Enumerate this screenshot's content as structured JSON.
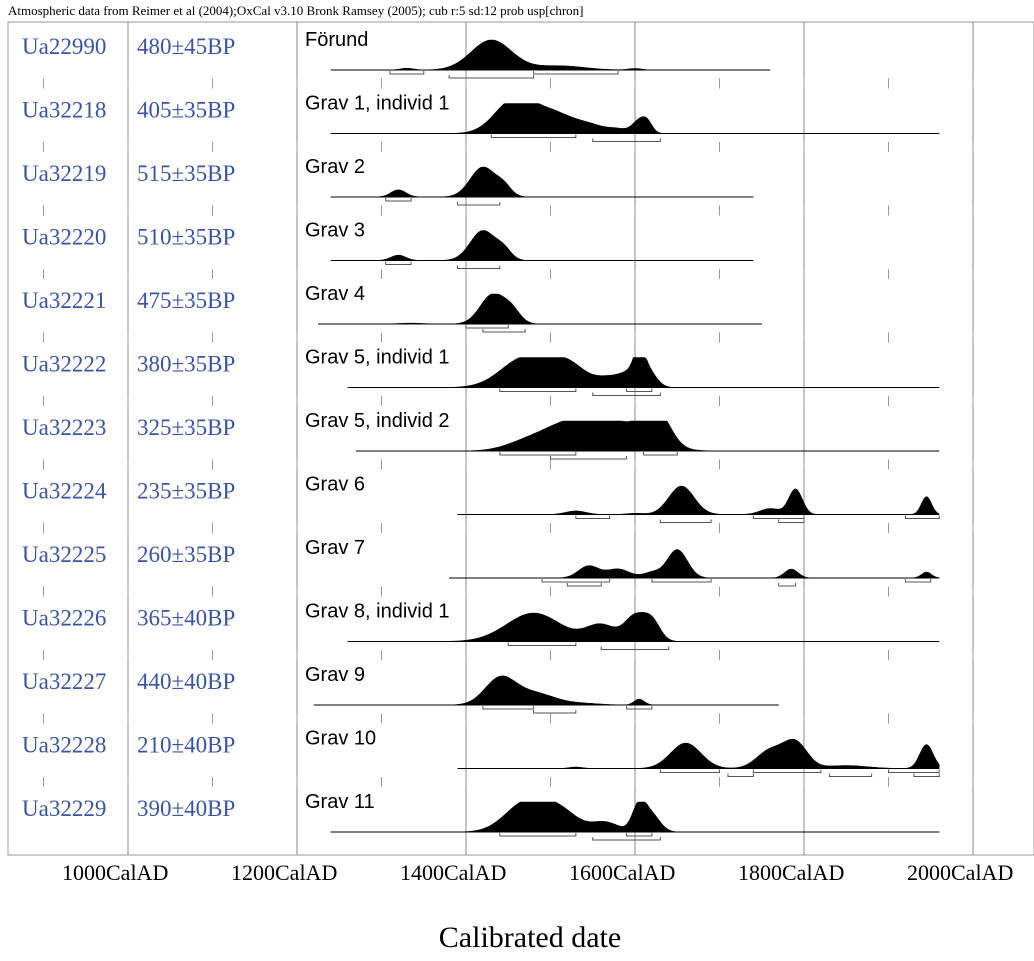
{
  "chart_data": {
    "type": "area",
    "title": "Atmospheric data from Reimer et al (2004);OxCal v3.10 Bronk Ramsey (2005); cub r:5 sd:12 prob usp[chron]",
    "xlabel": "Calibrated date",
    "xlim": [
      900,
      2000
    ],
    "x_ticks": [
      {
        "value": 1000,
        "label": "1000CalAD"
      },
      {
        "value": 1200,
        "label": "1200CalAD"
      },
      {
        "value": 1400,
        "label": "1400CalAD"
      },
      {
        "value": 1600,
        "label": "1600CalAD"
      },
      {
        "value": 1800,
        "label": "1800CalAD"
      },
      {
        "value": 2000,
        "label": "2000CalAD"
      }
    ],
    "samples": [
      {
        "lab_id": "Ua22990",
        "date": "480±45BP",
        "name": "Förund",
        "line": [
          1240,
          1760
        ],
        "peaks": [
          [
            1330,
            8,
            0.06
          ],
          [
            1430,
            24,
            1.0
          ],
          [
            1510,
            30,
            0.14
          ],
          [
            1600,
            8,
            0.05
          ]
        ],
        "ranges": [
          [
            1310,
            1350
          ],
          [
            1380,
            1480
          ],
          [
            1480,
            1580
          ]
        ]
      },
      {
        "lab_id": "Ua32218",
        "date": "405±35BP",
        "name": "Grav 1, individ 1",
        "line": [
          1240,
          1960
        ],
        "peaks": [
          [
            1455,
            22,
            0.96
          ],
          [
            1500,
            30,
            0.72
          ],
          [
            1550,
            15,
            0.15
          ],
          [
            1580,
            12,
            0.14
          ],
          [
            1605,
            8,
            0.42
          ],
          [
            1615,
            6,
            0.3
          ]
        ],
        "ranges": [
          [
            1430,
            1530
          ],
          [
            1550,
            1630
          ]
        ]
      },
      {
        "lab_id": "Ua32219",
        "date": "515±35BP",
        "name": "Grav 2",
        "line": [
          1240,
          1740
        ],
        "peaks": [
          [
            1320,
            9,
            0.24
          ],
          [
            1420,
            15,
            1.0
          ],
          [
            1445,
            9,
            0.3
          ]
        ],
        "ranges": [
          [
            1305,
            1335
          ],
          [
            1390,
            1440
          ]
        ]
      },
      {
        "lab_id": "Ua32220",
        "date": "510±35BP",
        "name": "Grav 3",
        "line": [
          1240,
          1740
        ],
        "peaks": [
          [
            1320,
            9,
            0.18
          ],
          [
            1420,
            15,
            1.0
          ],
          [
            1445,
            9,
            0.3
          ]
        ],
        "ranges": [
          [
            1305,
            1335
          ],
          [
            1390,
            1440
          ]
        ]
      },
      {
        "lab_id": "Ua32221",
        "date": "475±35BP",
        "name": "Grav 4",
        "line": [
          1225,
          1750
        ],
        "peaks": [
          [
            1335,
            14,
            0.03
          ],
          [
            1432,
            15,
            1.0
          ],
          [
            1455,
            10,
            0.35
          ]
        ],
        "ranges": [
          [
            1400,
            1450
          ],
          [
            1420,
            1470
          ]
        ]
      },
      {
        "lab_id": "Ua32222",
        "date": "380±35BP",
        "name": "Grav 5, individ 1",
        "line": [
          1260,
          1960
        ],
        "peaks": [
          [
            1470,
            28,
            1.0
          ],
          [
            1520,
            22,
            0.76
          ],
          [
            1570,
            15,
            0.3
          ],
          [
            1595,
            12,
            0.43
          ],
          [
            1605,
            6,
            0.8
          ],
          [
            1615,
            10,
            0.55
          ]
        ],
        "ranges": [
          [
            1440,
            1530
          ],
          [
            1550,
            1630
          ],
          [
            1590,
            1620
          ]
        ]
      },
      {
        "lab_id": "Ua32223",
        "date": "325±35BP",
        "name": "Grav 5, individ 2",
        "line": [
          1270,
          1960
        ],
        "peaks": [
          [
            1470,
            25,
            0.25
          ],
          [
            1520,
            30,
            0.8
          ],
          [
            1580,
            35,
            0.92
          ],
          [
            1615,
            10,
            0.7
          ],
          [
            1630,
            14,
            0.85
          ]
        ],
        "ranges": [
          [
            1440,
            1530
          ],
          [
            1500,
            1590
          ],
          [
            1610,
            1650
          ]
        ]
      },
      {
        "lab_id": "Ua32224",
        "date": "235±35BP",
        "name": "Grav 6",
        "line": [
          1390,
          1960
        ],
        "peaks": [
          [
            1530,
            12,
            0.12
          ],
          [
            1600,
            10,
            0.04
          ],
          [
            1655,
            15,
            0.95
          ],
          [
            1760,
            12,
            0.2
          ],
          [
            1790,
            8,
            0.85
          ],
          [
            1945,
            6,
            0.6
          ]
        ],
        "ranges": [
          [
            1530,
            1570
          ],
          [
            1630,
            1690
          ],
          [
            1740,
            1800
          ],
          [
            1770,
            1800
          ],
          [
            1920,
            1960
          ]
        ]
      },
      {
        "lab_id": "Ua32225",
        "date": "260±35BP",
        "name": "Grav 7",
        "line": [
          1380,
          1960
        ],
        "peaks": [
          [
            1545,
            12,
            0.4
          ],
          [
            1580,
            14,
            0.3
          ],
          [
            1620,
            10,
            0.18
          ],
          [
            1650,
            12,
            0.95
          ],
          [
            1785,
            8,
            0.3
          ],
          [
            1945,
            6,
            0.2
          ]
        ],
        "ranges": [
          [
            1490,
            1570
          ],
          [
            1520,
            1560
          ],
          [
            1620,
            1690
          ],
          [
            1770,
            1790
          ],
          [
            1920,
            1950
          ]
        ]
      },
      {
        "lab_id": "Ua32226",
        "date": "365±40BP",
        "name": "Grav 8, individ 1",
        "line": [
          1260,
          1960
        ],
        "peaks": [
          [
            1480,
            32,
            0.95
          ],
          [
            1560,
            18,
            0.55
          ],
          [
            1600,
            12,
            0.8
          ],
          [
            1620,
            10,
            0.65
          ]
        ],
        "ranges": [
          [
            1450,
            1530
          ],
          [
            1560,
            1640
          ]
        ]
      },
      {
        "lab_id": "Ua32227",
        "date": "440±40BP",
        "name": "Grav 9",
        "line": [
          1220,
          1770
        ],
        "peaks": [
          [
            1440,
            18,
            0.85
          ],
          [
            1480,
            25,
            0.4
          ],
          [
            1540,
            20,
            0.05
          ],
          [
            1605,
            6,
            0.2
          ]
        ],
        "ranges": [
          [
            1420,
            1480
          ],
          [
            1480,
            1530
          ],
          [
            1590,
            1620
          ]
        ]
      },
      {
        "lab_id": "Ua32228",
        "date": "210±40BP",
        "name": "Grav 10",
        "line": [
          1390,
          1960
        ],
        "peaks": [
          [
            1530,
            8,
            0.05
          ],
          [
            1660,
            18,
            0.85
          ],
          [
            1760,
            16,
            0.6
          ],
          [
            1790,
            14,
            0.85
          ],
          [
            1850,
            25,
            0.1
          ],
          [
            1945,
            8,
            0.8
          ]
        ],
        "ranges": [
          [
            1630,
            1700
          ],
          [
            1710,
            1740
          ],
          [
            1740,
            1820
          ],
          [
            1830,
            1880
          ],
          [
            1900,
            1960
          ],
          [
            1930,
            1960
          ]
        ]
      },
      {
        "lab_id": "Ua32229",
        "date": "390±40BP",
        "name": "Grav 11",
        "line": [
          1240,
          1960
        ],
        "peaks": [
          [
            1470,
            24,
            0.95
          ],
          [
            1510,
            22,
            0.7
          ],
          [
            1565,
            16,
            0.32
          ],
          [
            1605,
            8,
            0.9
          ],
          [
            1620,
            10,
            0.55
          ]
        ],
        "ranges": [
          [
            1440,
            1530
          ],
          [
            1550,
            1630
          ],
          [
            1590,
            1620
          ]
        ]
      }
    ],
    "grid": true
  }
}
